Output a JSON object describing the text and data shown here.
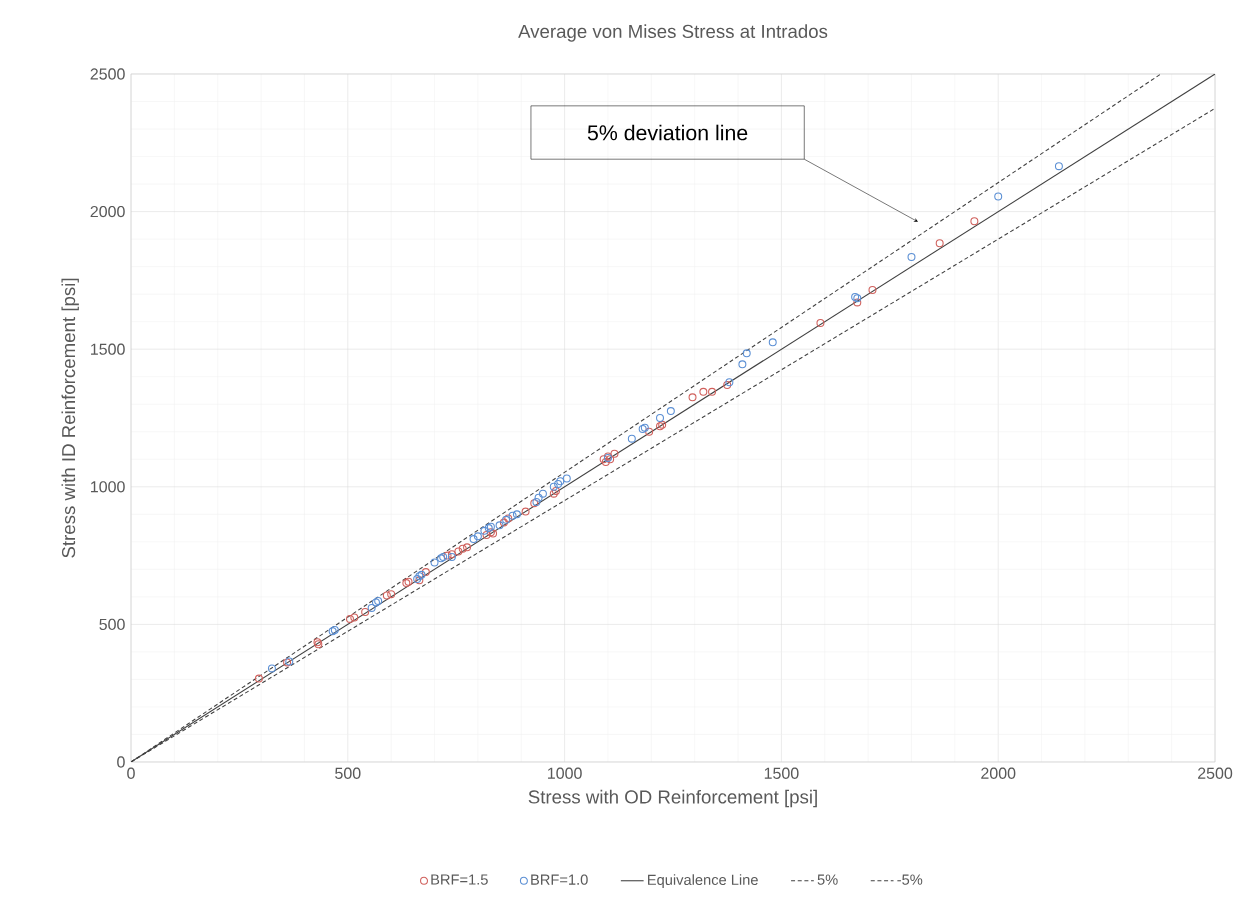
{
  "chart_data": {
    "type": "scatter",
    "title": "Average von Mises Stress at Intrados",
    "xlabel": "Stress with OD Reinforcement [psi]",
    "ylabel": "Stress with ID Reinforcement [psi]",
    "xlim": [
      0,
      2500
    ],
    "ylim": [
      0,
      2500
    ],
    "xticks": [
      0,
      500,
      1000,
      1500,
      2000,
      2500
    ],
    "yticks": [
      0,
      500,
      1000,
      1500,
      2000,
      2500
    ],
    "grid": true,
    "legend": "bottom",
    "annotations": [
      "5% deviation line"
    ],
    "series": [
      {
        "name": "BRF=1.5",
        "marker": "circle",
        "color": "#d0605c",
        "x": [
          295,
          360,
          430,
          432,
          505,
          515,
          540,
          590,
          600,
          635,
          640,
          665,
          680,
          730,
          740,
          755,
          765,
          775,
          820,
          830,
          835,
          860,
          870,
          910,
          930,
          975,
          980,
          1090,
          1095,
          1100,
          1105,
          1115,
          1195,
          1220,
          1225,
          1295,
          1320,
          1340,
          1375,
          1590,
          1675,
          1710,
          1865,
          1945
        ],
        "values": [
          303,
          362,
          435,
          428,
          520,
          525,
          545,
          605,
          610,
          650,
          655,
          660,
          690,
          750,
          755,
          765,
          775,
          780,
          825,
          835,
          830,
          870,
          885,
          910,
          940,
          975,
          985,
          1100,
          1090,
          1110,
          1100,
          1120,
          1200,
          1220,
          1225,
          1325,
          1345,
          1345,
          1370,
          1595,
          1670,
          1715,
          1885,
          1965
        ]
      },
      {
        "name": "BRF=1.0",
        "marker": "circle",
        "color": "#5b8fd4",
        "x": [
          325,
          365,
          465,
          470,
          555,
          565,
          570,
          660,
          665,
          670,
          700,
          715,
          720,
          740,
          790,
          800,
          815,
          825,
          830,
          850,
          865,
          880,
          890,
          935,
          940,
          950,
          975,
          985,
          990,
          1005,
          1100,
          1155,
          1180,
          1185,
          1220,
          1245,
          1380,
          1410,
          1420,
          1480,
          1670,
          1675,
          1800,
          2000,
          2140
        ],
        "values": [
          340,
          365,
          475,
          480,
          560,
          580,
          585,
          665,
          675,
          680,
          725,
          740,
          745,
          745,
          810,
          820,
          840,
          850,
          855,
          860,
          880,
          895,
          900,
          945,
          960,
          975,
          1000,
          1010,
          1020,
          1030,
          1105,
          1175,
          1210,
          1215,
          1250,
          1275,
          1380,
          1445,
          1485,
          1525,
          1690,
          1685,
          1835,
          2055,
          2165
        ]
      },
      {
        "name": "Equivalence Line",
        "type": "line",
        "line_style": "solid",
        "marker": "none",
        "color": "#404040",
        "x": [
          0,
          2500
        ],
        "values": [
          0,
          2500
        ]
      },
      {
        "name": "5%",
        "type": "line",
        "line_style": "dashed",
        "marker": "none",
        "color": "#404040",
        "x": [
          0,
          2375
        ],
        "values": [
          0,
          2500
        ]
      },
      {
        "name": "-5%",
        "type": "line",
        "line_style": "dashed",
        "marker": "none",
        "color": "#404040",
        "x": [
          0,
          2500
        ],
        "values": [
          0,
          2375
        ]
      }
    ]
  }
}
